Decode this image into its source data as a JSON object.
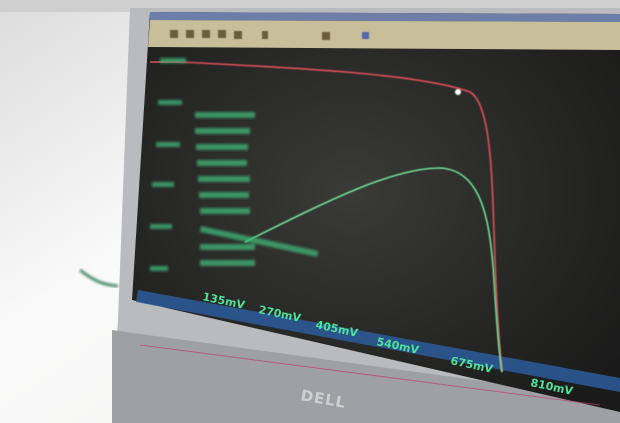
{
  "screen": {
    "x_axis_labels": [
      "135mV",
      "270mV",
      "405mV",
      "540mV",
      "675mV",
      "810mV"
    ]
  },
  "bezel": {
    "logo": "DELL"
  }
}
